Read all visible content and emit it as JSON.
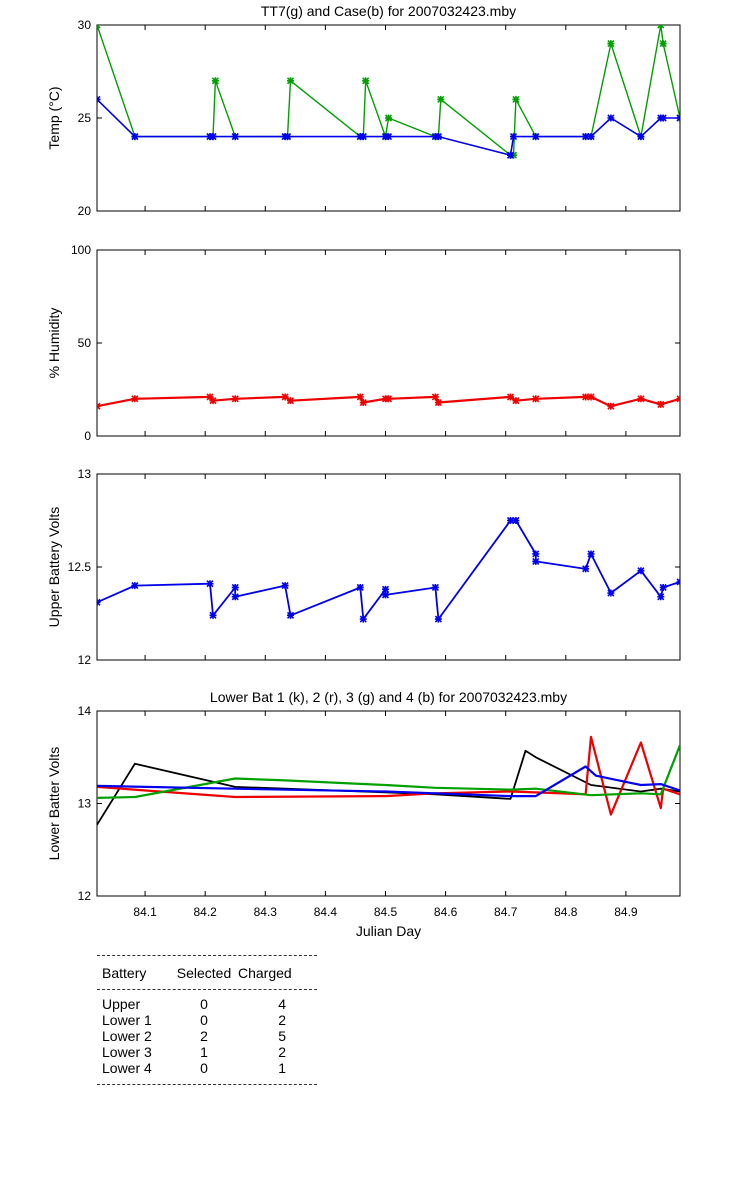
{
  "chart_data": [
    {
      "type": "line",
      "title": "TT7(g) and Case(b) for 2007032423.mby",
      "ylabel": "Temp  (°C)",
      "xlim": [
        84.02,
        84.99
      ],
      "ylim": [
        20,
        30
      ],
      "yticks": [
        20,
        25,
        30
      ],
      "show_xticklabels": false,
      "series": [
        {
          "color": "#00a000",
          "marker": true,
          "width": 1.4,
          "x": [
            84.02,
            84.083,
            84.208,
            84.213,
            84.217,
            84.25,
            84.333,
            84.337,
            84.342,
            84.458,
            84.463,
            84.467,
            84.5,
            84.505,
            84.583,
            84.588,
            84.592,
            84.708,
            84.713,
            84.717,
            84.75,
            84.833,
            84.842,
            84.875,
            84.925,
            84.958,
            84.962,
            84.99
          ],
          "y": [
            30,
            24,
            24,
            24,
            27,
            24,
            24,
            24,
            27,
            24,
            24,
            27,
            24,
            25,
            24,
            24,
            26,
            23,
            23,
            26,
            24,
            24,
            24,
            29,
            24,
            30,
            29,
            25
          ]
        },
        {
          "color": "#0000ee",
          "marker": true,
          "width": 1.6,
          "x": [
            84.02,
            84.083,
            84.208,
            84.213,
            84.25,
            84.333,
            84.337,
            84.458,
            84.463,
            84.5,
            84.505,
            84.583,
            84.588,
            84.708,
            84.713,
            84.75,
            84.833,
            84.842,
            84.875,
            84.925,
            84.958,
            84.962,
            84.99
          ],
          "y": [
            26,
            24,
            24,
            24,
            24,
            24,
            24,
            24,
            24,
            24,
            24,
            24,
            24,
            23,
            24,
            24,
            24,
            24,
            25,
            24,
            25,
            25,
            25
          ]
        }
      ]
    },
    {
      "type": "line",
      "title": "",
      "ylabel": "% Humidity",
      "xlim": [
        84.02,
        84.99
      ],
      "ylim": [
        0,
        100
      ],
      "yticks": [
        0,
        50,
        100
      ],
      "show_xticklabels": false,
      "series": [
        {
          "color": "#ee0000",
          "marker": true,
          "width": 2.2,
          "x": [
            84.02,
            84.083,
            84.208,
            84.213,
            84.25,
            84.333,
            84.342,
            84.458,
            84.463,
            84.5,
            84.505,
            84.583,
            84.588,
            84.708,
            84.717,
            84.75,
            84.833,
            84.842,
            84.875,
            84.925,
            84.958,
            84.99
          ],
          "y": [
            16,
            20,
            21,
            19,
            20,
            21,
            19,
            21,
            18,
            20,
            20,
            21,
            18,
            21,
            19,
            20,
            21,
            21,
            16,
            20,
            17,
            20
          ]
        }
      ]
    },
    {
      "type": "line",
      "title": "",
      "ylabel": "Upper Battery Volts",
      "xlim": [
        84.02,
        84.99
      ],
      "ylim": [
        12,
        13
      ],
      "yticks": [
        12,
        12.5,
        13
      ],
      "show_xticklabels": false,
      "series": [
        {
          "color": "#0000ee",
          "marker": true,
          "width": 1.8,
          "x": [
            84.02,
            84.083,
            84.208,
            84.213,
            84.25,
            84.25,
            84.333,
            84.342,
            84.458,
            84.463,
            84.5,
            84.5,
            84.583,
            84.588,
            84.708,
            84.717,
            84.75,
            84.75,
            84.833,
            84.842,
            84.875,
            84.925,
            84.958,
            84.962,
            84.99
          ],
          "y": [
            12.31,
            12.4,
            12.41,
            12.24,
            12.39,
            12.34,
            12.4,
            12.24,
            12.39,
            12.22,
            12.38,
            12.35,
            12.39,
            12.22,
            12.75,
            12.75,
            12.57,
            12.53,
            12.49,
            12.57,
            12.36,
            12.48,
            12.34,
            12.39,
            12.42
          ]
        }
      ]
    },
    {
      "type": "line",
      "title": "Lower Bat 1 (k), 2 (r), 3 (g) and 4 (b) for 2007032423.mby",
      "ylabel": "Lower Batter Volts",
      "xlabel": "Julian Day",
      "xlim": [
        84.02,
        84.99
      ],
      "ylim": [
        12,
        14
      ],
      "yticks": [
        12,
        13,
        14
      ],
      "xticks": [
        84.1,
        84.2,
        84.3,
        84.4,
        84.5,
        84.6,
        84.7,
        84.8,
        84.9
      ],
      "show_xticklabels": true,
      "series": [
        {
          "color": "#000000",
          "marker": false,
          "width": 1.8,
          "x": [
            84.02,
            84.083,
            84.25,
            84.333,
            84.5,
            84.583,
            84.708,
            84.733,
            84.75,
            84.842,
            84.925,
            84.958,
            84.99
          ],
          "y": [
            12.77,
            13.43,
            13.18,
            13.16,
            13.12,
            13.1,
            13.05,
            13.57,
            13.5,
            13.2,
            13.13,
            13.16,
            13.13
          ]
        },
        {
          "color": "#ee0000",
          "marker": false,
          "width": 2.2,
          "x": [
            84.02,
            84.25,
            84.5,
            84.583,
            84.708,
            84.75,
            84.833,
            84.842,
            84.875,
            84.925,
            84.958,
            84.962,
            84.99
          ],
          "y": [
            13.18,
            13.07,
            13.08,
            13.11,
            13.13,
            13.12,
            13.1,
            13.72,
            12.88,
            13.66,
            12.95,
            13.16,
            13.1
          ]
        },
        {
          "color": "#00a000",
          "marker": false,
          "width": 2.2,
          "x": [
            84.02,
            84.083,
            84.25,
            84.333,
            84.5,
            84.583,
            84.708,
            84.75,
            84.842,
            84.925,
            84.958,
            84.99
          ],
          "y": [
            13.06,
            13.07,
            13.27,
            13.25,
            13.2,
            13.17,
            13.15,
            13.16,
            13.09,
            13.11,
            13.1,
            13.63
          ]
        },
        {
          "color": "#0000ee",
          "marker": false,
          "width": 2.2,
          "x": [
            84.02,
            84.25,
            84.5,
            84.583,
            84.708,
            84.75,
            84.833,
            84.85,
            84.925,
            84.958,
            84.99
          ],
          "y": [
            13.19,
            13.16,
            13.13,
            13.11,
            13.08,
            13.08,
            13.4,
            13.3,
            13.2,
            13.21,
            13.14
          ]
        }
      ]
    }
  ],
  "battery_table": {
    "headers": [
      "Battery",
      "Selected",
      "Charged"
    ],
    "rows": [
      {
        "battery": "Upper",
        "selected": "0",
        "charged": "4"
      },
      {
        "battery": "Lower 1",
        "selected": "0",
        "charged": "2"
      },
      {
        "battery": "Lower 2",
        "selected": "2",
        "charged": "5"
      },
      {
        "battery": "Lower 3",
        "selected": "1",
        "charged": "2"
      },
      {
        "battery": "Lower 4",
        "selected": "0",
        "charged": "1"
      }
    ]
  }
}
